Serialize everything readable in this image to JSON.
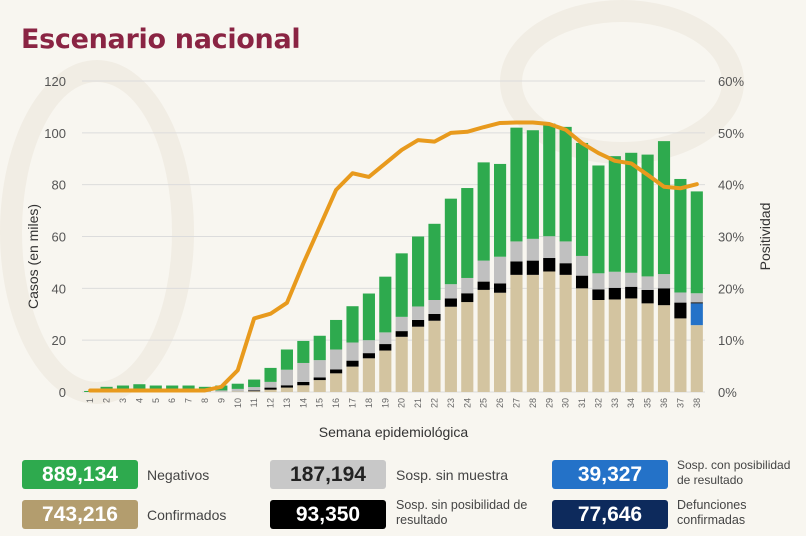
{
  "title": "Escenario nacional",
  "chart_data": {
    "type": "bar",
    "stacked": true,
    "xlabel": "Semana epidemiológica",
    "ylabel": "Casos (en miles)",
    "y2label": "Positividad",
    "ylim": [
      0,
      120
    ],
    "yticks": [
      "0",
      "20",
      "40",
      "60",
      "80",
      "100",
      "120"
    ],
    "y2lim": [
      0,
      60
    ],
    "y2ticks": [
      "0%",
      "10%",
      "20%",
      "30%",
      "40%",
      "50%",
      "60%"
    ],
    "grid": true,
    "categories": [
      "1",
      "2",
      "3",
      "4",
      "5",
      "6",
      "7",
      "8",
      "9",
      "10",
      "11",
      "12",
      "13",
      "14",
      "15",
      "16",
      "17",
      "18",
      "19",
      "20",
      "21",
      "22",
      "23",
      "24",
      "25",
      "26",
      "27",
      "28",
      "29",
      "30",
      "31",
      "32",
      "33",
      "34",
      "35",
      "36",
      "37",
      "38"
    ],
    "series": [
      {
        "key": "confirmados",
        "color": "#d3c4a0",
        "values": [
          0,
          0,
          0,
          0,
          0,
          0,
          0,
          0,
          0.1,
          0.2,
          0.3,
          0.9,
          1.7,
          2.6,
          4.6,
          7.2,
          9.8,
          13,
          16,
          21.3,
          25.2,
          27.5,
          32.9,
          34.7,
          39.4,
          38.3,
          45.2,
          45.2,
          46.5,
          45.2,
          40,
          35.5,
          35.7,
          36.1,
          34.2,
          33.5,
          28.4,
          25.8
        ]
      },
      {
        "key": "sosp_con_posibilidad",
        "color": "#2472c8",
        "values": [
          0,
          0,
          0,
          0,
          0,
          0,
          0,
          0,
          0,
          0,
          0,
          0,
          0,
          0,
          0,
          0,
          0,
          0,
          0,
          0,
          0,
          0,
          0,
          0,
          0,
          0,
          0,
          0,
          0,
          0,
          0,
          0,
          0,
          0,
          0,
          0,
          0,
          8.4
        ]
      },
      {
        "key": "sosp_sin_posibilidad",
        "color": "#000000",
        "values": [
          0,
          0,
          0,
          0,
          0,
          0,
          0,
          0,
          0,
          0,
          0.3,
          0.8,
          0.9,
          1.3,
          1,
          1.5,
          2.3,
          2,
          2.5,
          2.2,
          2.6,
          2.6,
          3.2,
          3.4,
          3.2,
          3.6,
          5.2,
          5.5,
          5.2,
          4.5,
          4.9,
          4.1,
          4.5,
          4.5,
          5.2,
          6.5,
          6.1,
          0.4
        ]
      },
      {
        "key": "sosp_sin_muestra",
        "color": "#c0c0c0",
        "values": [
          0,
          0.3,
          0.3,
          0.3,
          0.3,
          0.3,
          0.3,
          0.3,
          0.5,
          1,
          1.3,
          2.2,
          6,
          7.3,
          6.7,
          7.7,
          7,
          5,
          4.5,
          5.5,
          5.2,
          5.4,
          5.5,
          5.9,
          8.1,
          10.3,
          7.7,
          8.4,
          8.4,
          8.4,
          7.6,
          6.2,
          6.2,
          5.4,
          5.2,
          5.5,
          3.9,
          3.5
        ]
      },
      {
        "key": "negativos",
        "color": "#2eaa4e",
        "values": [
          0.4,
          1.7,
          2.2,
          2.7,
          2.2,
          2.2,
          2.2,
          1.7,
          1.9,
          2,
          2.9,
          5.4,
          7.8,
          8.5,
          9.4,
          11.4,
          14,
          18,
          21.5,
          24.5,
          27,
          29.4,
          33,
          34.7,
          37.9,
          35.8,
          43.9,
          41.9,
          43.5,
          44.2,
          43.6,
          41.6,
          44.6,
          46.3,
          47,
          51.3,
          43.8,
          39.3
        ]
      }
    ],
    "line": {
      "key": "positividad",
      "axis": "right",
      "unit": "%",
      "color": "#e89a1d",
      "values": [
        0.3,
        0.3,
        0.3,
        0.3,
        0.3,
        0.3,
        0.3,
        0.3,
        1,
        4.2,
        14.2,
        15.1,
        17.2,
        24.8,
        31.9,
        39,
        42.2,
        41.5,
        44.1,
        46.7,
        48.6,
        48.3,
        50,
        50.2,
        51.1,
        51.9,
        52,
        52,
        51.7,
        50.6,
        48,
        46.1,
        44.6,
        44.1,
        41.9,
        39.6,
        39.3,
        40.1
      ]
    }
  },
  "summary": [
    {
      "value": "889,134",
      "label": "Negativos",
      "color": "#2eaa4e"
    },
    {
      "value": "743,216",
      "label": "Confirmados",
      "color": "#b39d6e"
    },
    {
      "value": "187,194",
      "label": "Sosp. sin muestra",
      "color": "#c8c8c8",
      "text_color": "#222222"
    },
    {
      "value": "93,350",
      "label": "Sosp. sin posibilidad de resultado",
      "color": "#000000"
    },
    {
      "value": "39,327",
      "label": "Sosp. con posibilidad de resultado",
      "color": "#2472c8"
    },
    {
      "value": "77,646",
      "label": "Defunciones confirmadas",
      "color": "#0d2a5c"
    }
  ]
}
